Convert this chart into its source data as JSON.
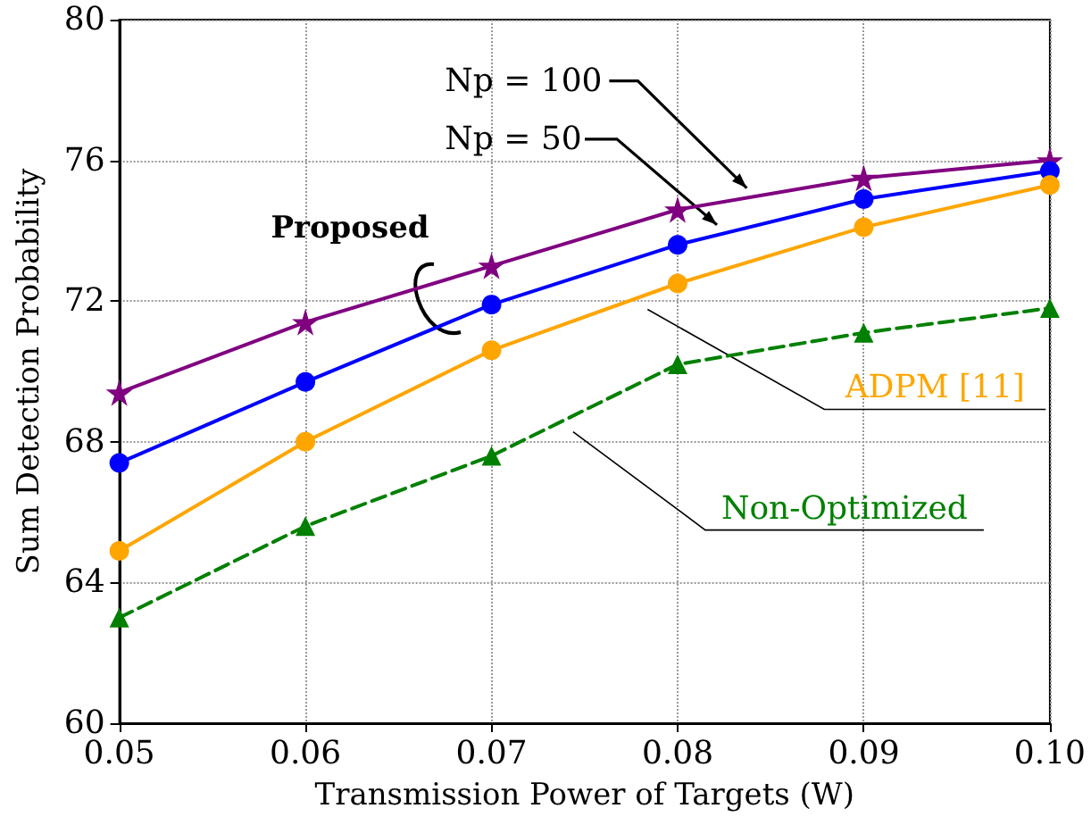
{
  "chart_data": {
    "type": "line",
    "xlabel": "Transmission Power of Targets (W)",
    "ylabel": "Sum Detection Probability",
    "x": [
      0.05,
      0.06,
      0.07,
      0.08,
      0.09,
      0.1
    ],
    "series": [
      {
        "name": "Np = 100",
        "color": "#800080",
        "marker": "star",
        "line_style": "solid",
        "values": [
          69.4,
          71.4,
          73.0,
          74.6,
          75.5,
          76.0
        ]
      },
      {
        "name": "Np = 50",
        "color": "#0000ff",
        "marker": "circle",
        "line_style": "solid",
        "values": [
          67.4,
          69.7,
          71.9,
          73.6,
          74.9,
          75.7
        ]
      },
      {
        "name": "ADPM [11]",
        "color": "#ffa500",
        "marker": "circle",
        "line_style": "solid",
        "values": [
          64.9,
          68.0,
          70.6,
          72.5,
          74.1,
          75.3
        ]
      },
      {
        "name": "Non-Optimized",
        "color": "#008000",
        "marker": "triangle",
        "line_style": "dashed",
        "values": [
          63.0,
          65.6,
          67.6,
          70.2,
          71.1,
          71.8
        ]
      }
    ],
    "annotations": [
      "Proposed"
    ],
    "xlim": [
      0.05,
      0.1
    ],
    "xticks": [
      {
        "value": 0.05,
        "label": "0.05"
      },
      {
        "value": 0.06,
        "label": "0.06"
      },
      {
        "value": 0.07,
        "label": "0.07"
      },
      {
        "value": 0.08,
        "label": "0.08"
      },
      {
        "value": 0.09,
        "label": "0.09"
      },
      {
        "value": 0.1,
        "label": "0.10"
      }
    ],
    "ylim": [
      60,
      80
    ],
    "yticks": [
      60,
      64,
      68,
      72,
      76,
      80
    ],
    "grid": true,
    "legend": false
  }
}
